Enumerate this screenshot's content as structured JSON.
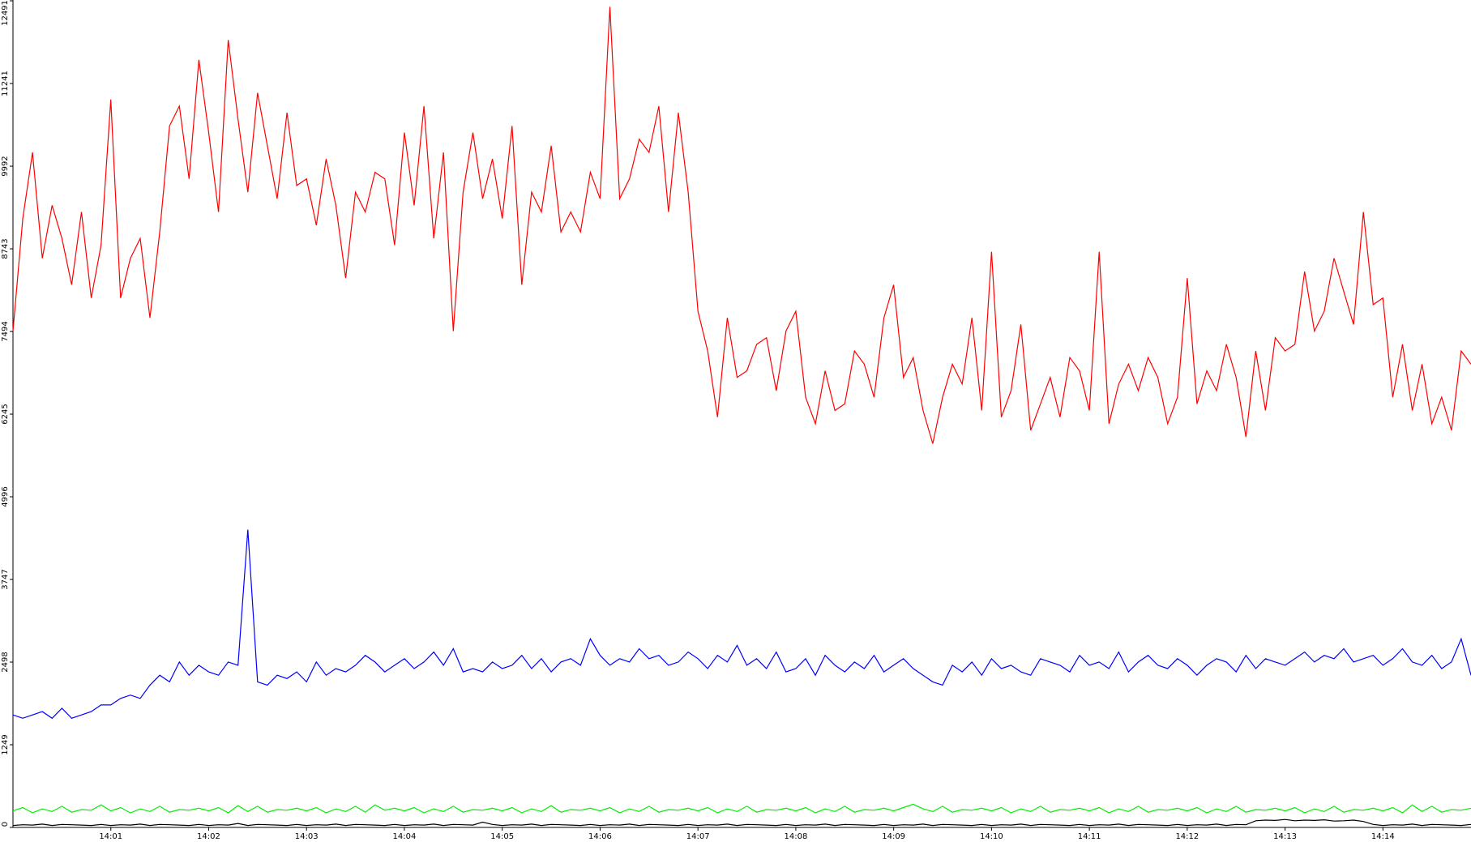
{
  "chart_data": {
    "type": "line",
    "categories": [
      null,
      null,
      null,
      null,
      null,
      null,
      null,
      null,
      null,
      null,
      "14:01",
      null,
      null,
      null,
      null,
      null,
      null,
      null,
      null,
      null,
      "14:02",
      null,
      null,
      null,
      null,
      null,
      null,
      null,
      null,
      null,
      "14:03",
      null,
      null,
      null,
      null,
      null,
      null,
      null,
      null,
      null,
      "14:04",
      null,
      null,
      null,
      null,
      null,
      null,
      null,
      null,
      null,
      "14:05",
      null,
      null,
      null,
      null,
      null,
      null,
      null,
      null,
      null,
      "14:06",
      null,
      null,
      null,
      null,
      null,
      null,
      null,
      null,
      null,
      "14:07",
      null,
      null,
      null,
      null,
      null,
      null,
      null,
      null,
      null,
      "14:08",
      null,
      null,
      null,
      null,
      null,
      null,
      null,
      null,
      null,
      "14:09",
      null,
      null,
      null,
      null,
      null,
      null,
      null,
      null,
      null,
      "14:10",
      null,
      null,
      null,
      null,
      null,
      null,
      null,
      null,
      null,
      "14:11",
      null,
      null,
      null,
      null,
      null,
      null,
      null,
      null,
      null,
      "14:12",
      null,
      null,
      null,
      null,
      null,
      null,
      null,
      null,
      null,
      "14:13",
      null,
      null,
      null,
      null,
      null,
      null,
      null,
      null,
      null,
      "14:14",
      null,
      null,
      null,
      null,
      null,
      null,
      null,
      null,
      null
    ],
    "series": [
      {
        "color": "#ff0000",
        "values": [
          7500,
          9200,
          10200,
          8600,
          9400,
          8900,
          8200,
          9300,
          8000,
          8800,
          11000,
          8000,
          8600,
          8900,
          7700,
          9000,
          10600,
          10900,
          9800,
          11600,
          10500,
          9300,
          11900,
          10700,
          9600,
          11100,
          10300,
          9500,
          10800,
          9700,
          9800,
          9100,
          10100,
          9400,
          8300,
          9600,
          9300,
          9900,
          9800,
          8800,
          10500,
          9400,
          10900,
          8900,
          10200,
          7500,
          9600,
          10500,
          9500,
          10100,
          9200,
          10600,
          8200,
          9600,
          9300,
          10300,
          9000,
          9300,
          9000,
          9900,
          9500,
          12400,
          9500,
          9800,
          10400,
          10200,
          10900,
          9300,
          10800,
          9600,
          7800,
          7200,
          6200,
          7700,
          6800,
          6900,
          7300,
          7400,
          6600,
          7500,
          7800,
          6500,
          6100,
          6900,
          6300,
          6400,
          7200,
          7000,
          6500,
          7700,
          8200,
          6800,
          7100,
          6300,
          5800,
          6500,
          7000,
          6700,
          7700,
          6300,
          8700,
          6200,
          6600,
          7600,
          6000,
          6400,
          6800,
          6200,
          7100,
          6900,
          6300,
          8700,
          6100,
          6700,
          7000,
          6600,
          7100,
          6800,
          6100,
          6500,
          8300,
          6400,
          6900,
          6600,
          7300,
          6800,
          5900,
          7200,
          6300,
          7400,
          7200,
          7300,
          8400,
          7500,
          7800,
          8600,
          8100,
          7600,
          9300,
          7900,
          8000,
          6500,
          7300,
          6300,
          7000,
          6100,
          6500,
          6000,
          7200,
          7000
        ]
      },
      {
        "color": "#0000ff",
        "values": [
          1700,
          1650,
          1700,
          1750,
          1650,
          1800,
          1650,
          1700,
          1750,
          1850,
          1850,
          1950,
          2000,
          1950,
          2150,
          2300,
          2200,
          2500,
          2300,
          2450,
          2350,
          2300,
          2500,
          2450,
          4500,
          2200,
          2150,
          2300,
          2250,
          2350,
          2200,
          2500,
          2300,
          2400,
          2350,
          2450,
          2600,
          2500,
          2350,
          2450,
          2550,
          2400,
          2500,
          2650,
          2450,
          2700,
          2350,
          2400,
          2350,
          2500,
          2400,
          2450,
          2600,
          2400,
          2550,
          2350,
          2500,
          2550,
          2450,
          2850,
          2600,
          2450,
          2550,
          2500,
          2700,
          2550,
          2600,
          2450,
          2500,
          2650,
          2550,
          2400,
          2600,
          2500,
          2750,
          2450,
          2550,
          2400,
          2650,
          2350,
          2400,
          2550,
          2300,
          2600,
          2450,
          2350,
          2500,
          2400,
          2600,
          2350,
          2450,
          2550,
          2400,
          2300,
          2200,
          2150,
          2450,
          2350,
          2500,
          2300,
          2550,
          2400,
          2450,
          2350,
          2300,
          2550,
          2500,
          2450,
          2350,
          2600,
          2450,
          2500,
          2400,
          2650,
          2350,
          2500,
          2600,
          2450,
          2400,
          2550,
          2450,
          2300,
          2450,
          2550,
          2500,
          2350,
          2600,
          2400,
          2550,
          2500,
          2450,
          2550,
          2650,
          2500,
          2600,
          2550,
          2700,
          2500,
          2550,
          2600,
          2450,
          2550,
          2700,
          2500,
          2450,
          2600,
          2400,
          2500,
          2850,
          2300
        ]
      },
      {
        "color": "#00ee00",
        "values": [
          250,
          300,
          220,
          280,
          240,
          320,
          230,
          270,
          260,
          340,
          250,
          300,
          220,
          280,
          240,
          320,
          230,
          270,
          260,
          290,
          250,
          300,
          220,
          330,
          240,
          320,
          230,
          270,
          260,
          290,
          250,
          300,
          220,
          280,
          240,
          320,
          230,
          340,
          260,
          290,
          250,
          300,
          220,
          280,
          240,
          320,
          230,
          270,
          260,
          290,
          250,
          300,
          220,
          280,
          240,
          330,
          230,
          270,
          260,
          290,
          250,
          300,
          220,
          280,
          240,
          320,
          230,
          270,
          260,
          290,
          250,
          300,
          220,
          280,
          240,
          320,
          230,
          270,
          260,
          290,
          250,
          300,
          220,
          280,
          240,
          320,
          230,
          270,
          260,
          290,
          250,
          300,
          350,
          280,
          240,
          320,
          230,
          270,
          260,
          290,
          250,
          300,
          220,
          280,
          240,
          320,
          230,
          270,
          260,
          290,
          250,
          300,
          220,
          280,
          240,
          320,
          230,
          270,
          260,
          290,
          250,
          300,
          220,
          280,
          240,
          320,
          230,
          270,
          260,
          290,
          250,
          300,
          220,
          280,
          240,
          320,
          230,
          270,
          260,
          290,
          250,
          300,
          220,
          340,
          240,
          320,
          230,
          270,
          260,
          290
        ]
      },
      {
        "color": "#000000",
        "values": [
          30,
          40,
          35,
          50,
          30,
          45,
          40,
          35,
          30,
          45,
          30,
          40,
          35,
          50,
          30,
          45,
          40,
          35,
          30,
          45,
          30,
          40,
          35,
          60,
          30,
          45,
          40,
          35,
          30,
          45,
          30,
          40,
          35,
          50,
          30,
          45,
          40,
          35,
          30,
          45,
          30,
          40,
          35,
          50,
          30,
          45,
          40,
          35,
          80,
          45,
          30,
          40,
          35,
          50,
          30,
          45,
          40,
          35,
          30,
          45,
          30,
          40,
          35,
          50,
          30,
          45,
          40,
          35,
          30,
          45,
          30,
          40,
          35,
          50,
          30,
          45,
          40,
          35,
          30,
          45,
          30,
          40,
          35,
          50,
          30,
          45,
          40,
          35,
          30,
          45,
          30,
          40,
          35,
          50,
          30,
          45,
          40,
          35,
          30,
          45,
          30,
          40,
          35,
          50,
          30,
          45,
          40,
          35,
          30,
          45,
          30,
          40,
          35,
          50,
          30,
          45,
          40,
          35,
          30,
          45,
          30,
          40,
          35,
          50,
          30,
          45,
          40,
          100,
          110,
          105,
          120,
          100,
          110,
          105,
          115,
          95,
          100,
          110,
          90,
          45,
          30,
          40,
          35,
          50,
          30,
          45,
          40,
          35,
          30,
          45
        ]
      }
    ],
    "ylim": [
      0,
      12491
    ],
    "yticks": [
      0,
      1249,
      2498,
      3747,
      4996,
      6245,
      7494,
      8743,
      9992,
      11241,
      12491
    ],
    "grid": false
  }
}
